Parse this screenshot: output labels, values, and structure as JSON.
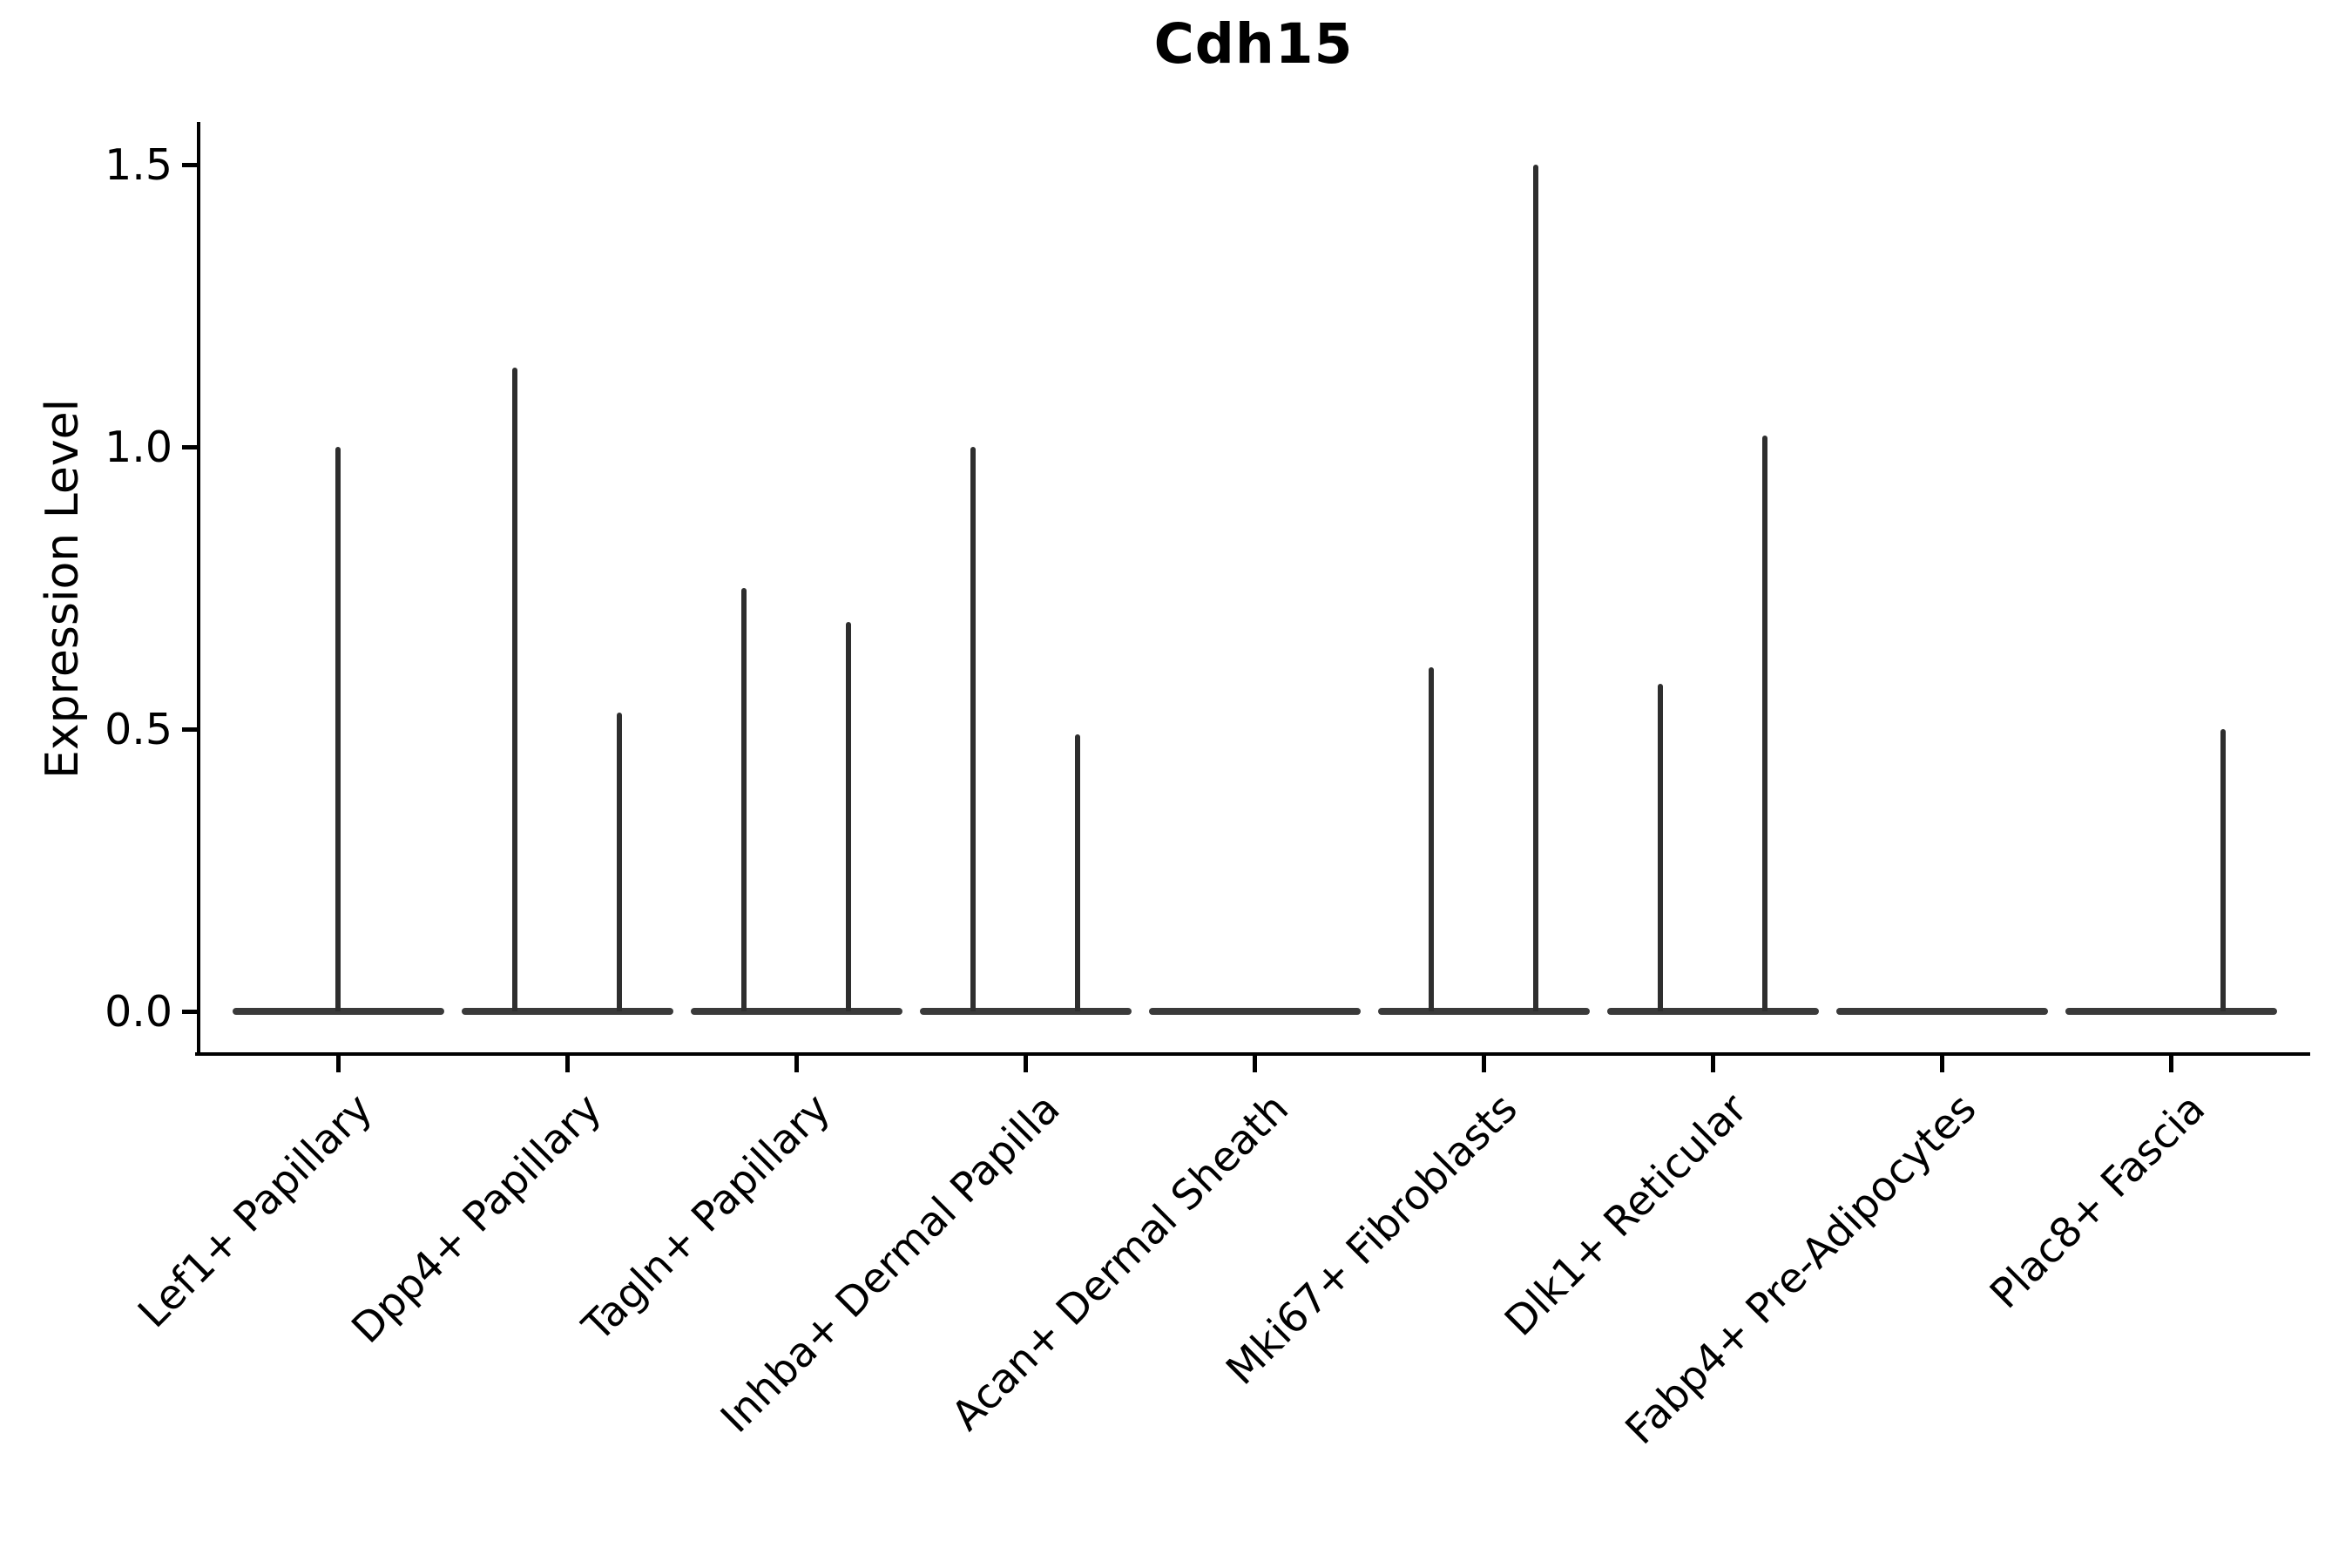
{
  "chart_data": {
    "type": "violin",
    "title": "Cdh15",
    "xlabel": "",
    "ylabel": "Expression Level",
    "ylim": [
      -0.07,
      1.58
    ],
    "yticks": [
      {
        "value": 0.0,
        "label": "0.0"
      },
      {
        "value": 0.5,
        "label": "0.5"
      },
      {
        "value": 1.0,
        "label": "1.0"
      },
      {
        "value": 1.5,
        "label": "1.5"
      }
    ],
    "grid": false,
    "legend": "none",
    "categories": [
      "Lef1+ Papillary",
      "Dpp4+ Papillary",
      "Tagln+ Papillary",
      "Inhba+ Dermal Papilla",
      "Acan+ Dermal Sheath",
      "Mki67+ Fibroblasts",
      "Dlk1+ Reticular",
      "Fabp4+ Pre-Adipocytes",
      "Plac8+ Fascia"
    ],
    "series_note": "Each category shows a flat violin base at expression 0; thin spikes mark the maximum expression of sub-violins (dodged left/right where two groups are present).",
    "violins": [
      {
        "category": "Lef1+ Papillary",
        "base_at_zero": true,
        "spikes": [
          {
            "side": "center",
            "max": 1.0
          }
        ]
      },
      {
        "category": "Dpp4+ Papillary",
        "base_at_zero": true,
        "spikes": [
          {
            "side": "left",
            "max": 1.14
          },
          {
            "side": "right",
            "max": 0.53
          }
        ]
      },
      {
        "category": "Tagln+ Papillary",
        "base_at_zero": true,
        "spikes": [
          {
            "side": "left",
            "max": 0.75
          },
          {
            "side": "right",
            "max": 0.69
          }
        ]
      },
      {
        "category": "Inhba+ Dermal Papilla",
        "base_at_zero": true,
        "spikes": [
          {
            "side": "left",
            "max": 1.0
          },
          {
            "side": "right",
            "max": 0.49
          }
        ]
      },
      {
        "category": "Acan+ Dermal Sheath",
        "base_at_zero": true,
        "spikes": []
      },
      {
        "category": "Mki67+ Fibroblasts",
        "base_at_zero": true,
        "spikes": [
          {
            "side": "left",
            "max": 0.61
          },
          {
            "side": "right",
            "max": 1.5
          }
        ]
      },
      {
        "category": "Dlk1+ Reticular",
        "base_at_zero": true,
        "spikes": [
          {
            "side": "left",
            "max": 0.58
          },
          {
            "side": "right",
            "max": 1.02
          }
        ]
      },
      {
        "category": "Fabp4+ Pre-Adipocytes",
        "base_at_zero": true,
        "spikes": []
      },
      {
        "category": "Plac8+ Fascia",
        "base_at_zero": true,
        "spikes": [
          {
            "side": "right",
            "max": 0.5
          }
        ]
      }
    ],
    "colors": {
      "violin": "#2e2e2e",
      "violin_base": "#3a3a3a",
      "axis": "#000000",
      "text": "#000000",
      "background": "#ffffff"
    }
  }
}
